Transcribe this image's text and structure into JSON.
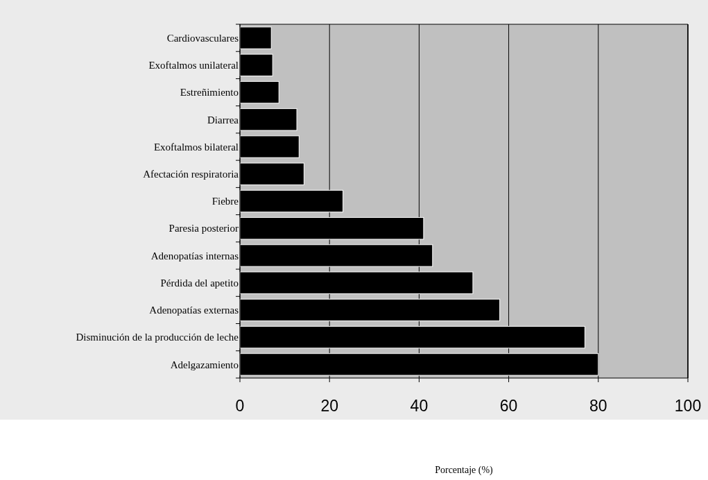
{
  "chart_data": {
    "type": "bar",
    "orientation": "horizontal",
    "annotations": [
      "Porcentaje (%)"
    ],
    "categories": [
      "Cardiovasculares",
      "Exoftalmos unilateral",
      "Estreñimiento",
      "Diarrea",
      "Exoftalmos bilateral",
      "Afectación respiratoria",
      "Fiebre",
      "Paresia posterior",
      "Adenopatías internas",
      "Pérdida del apetito",
      "Adenopatías externas",
      "Disminución de la producción de leche",
      "Adelgazamiento"
    ],
    "values": [
      7,
      7.3,
      8.7,
      12.7,
      13.2,
      14.3,
      23,
      41,
      43,
      52,
      58,
      77,
      80
    ],
    "color": "#000000",
    "xlim": [
      0,
      100
    ],
    "xticks": [
      0,
      20,
      40,
      60,
      80,
      100
    ],
    "grid": "x"
  }
}
